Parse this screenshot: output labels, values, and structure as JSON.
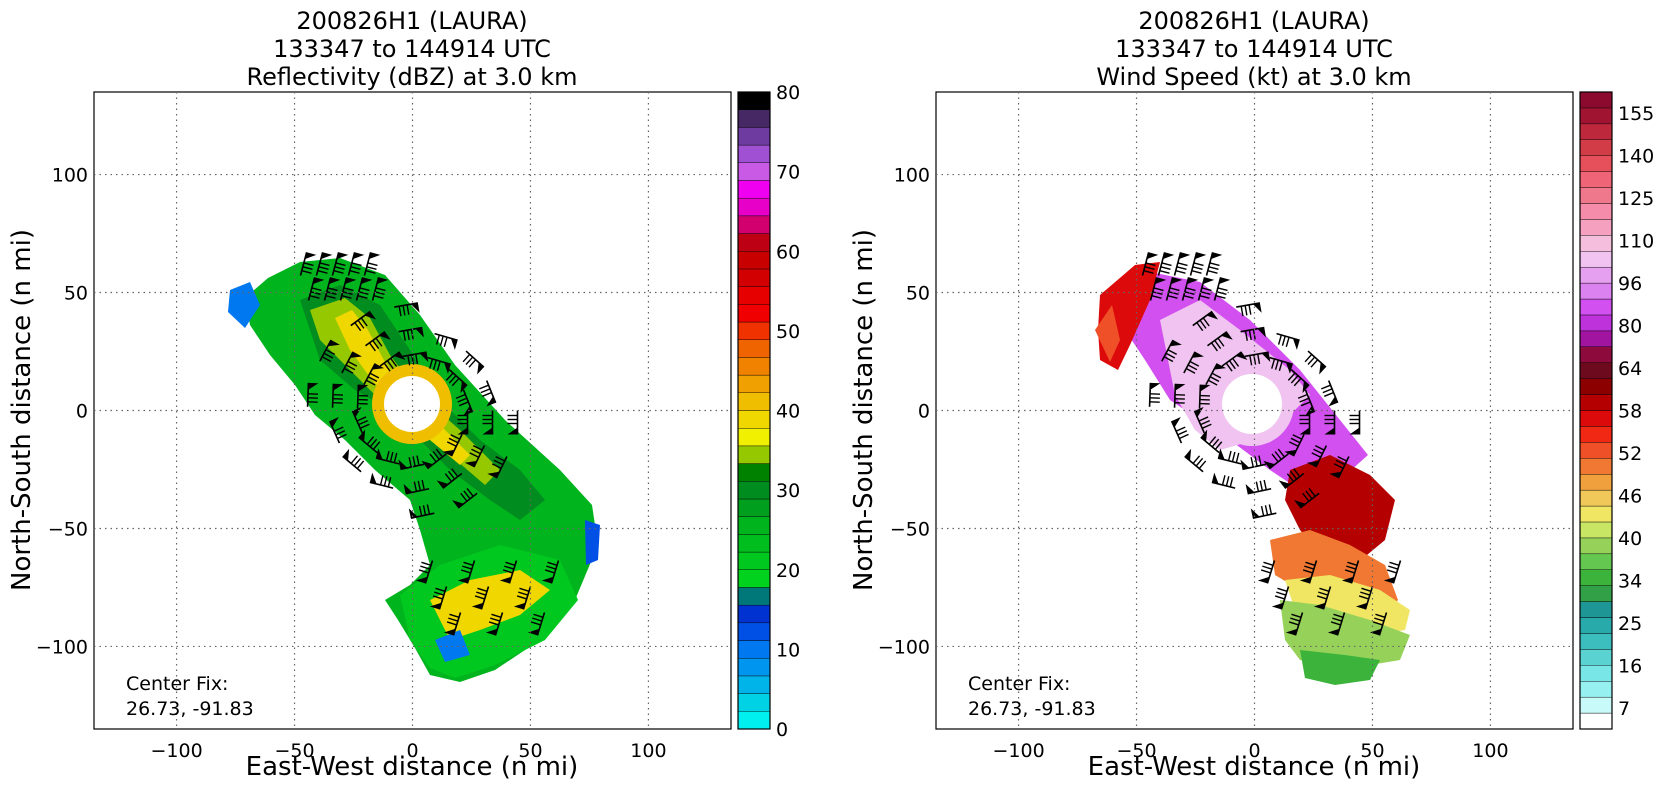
{
  "chart_data": [
    {
      "type": "heatmap",
      "title_lines": [
        "200826H1 (LAURA)",
        "133347 to 144914 UTC",
        "Reflectivity (dBZ) at 3.0 km"
      ],
      "xlabel": "East-West distance (n mi)",
      "ylabel": "North-South distance (n mi)",
      "xlim": [
        -135,
        135
      ],
      "ylim": [
        -135,
        135
      ],
      "xticks": [
        -100,
        -50,
        0,
        50,
        100
      ],
      "yticks": [
        -100,
        -50,
        0,
        50,
        100
      ],
      "grid": true,
      "annotation": [
        "Center Fix:",
        "26.73, -91.83"
      ],
      "colorbar": {
        "ticks": [
          0,
          10,
          20,
          30,
          40,
          50,
          60,
          70,
          80
        ],
        "min": 0,
        "max": 80,
        "colors": [
          "#00f0f0",
          "#00d2e6",
          "#00b4ea",
          "#0096f0",
          "#0078f0",
          "#0050e6",
          "#0032d2",
          "#00787a",
          "#00d21e",
          "#00c81e",
          "#00be1e",
          "#00b41e",
          "#00a01e",
          "#008c1e",
          "#008200",
          "#96c800",
          "#f0f000",
          "#f0d700",
          "#f0be00",
          "#f0a000",
          "#f08200",
          "#f06400",
          "#f03200",
          "#f00000",
          "#e60000",
          "#d20000",
          "#c80000",
          "#be0014",
          "#d2006e",
          "#e600c8",
          "#f000f0",
          "#c85ae6",
          "#a050d2",
          "#6e3ca0",
          "#462864",
          "#000000"
        ]
      }
    },
    {
      "type": "heatmap",
      "title_lines": [
        "200826H1 (LAURA)",
        "133347 to 144914 UTC",
        "Wind Speed (kt) at 3.0 km"
      ],
      "xlabel": "East-West distance (n mi)",
      "ylabel": "North-South distance (n mi)",
      "xlim": [
        -135,
        135
      ],
      "ylim": [
        -135,
        135
      ],
      "xticks": [
        -100,
        -50,
        0,
        50,
        100
      ],
      "yticks": [
        -100,
        -50,
        0,
        50,
        100
      ],
      "grid": true,
      "annotation": [
        "Center Fix:",
        "26.73, -91.83"
      ],
      "colorbar": {
        "ticks": [
          "155",
          "140",
          "125",
          "110",
          "96",
          "80",
          "64",
          "58",
          "52",
          "46",
          "40",
          "34",
          "25",
          "16",
          "7"
        ],
        "colors": [
          "#ffffff",
          "#c8fafa",
          "#96f0f0",
          "#78e6e6",
          "#5ad2d2",
          "#3cbebe",
          "#28aaaa",
          "#1e9696",
          "#32a046",
          "#3cb43c",
          "#64c850",
          "#96d25a",
          "#c8e664",
          "#f0e664",
          "#f0c85a",
          "#f0a03c",
          "#f07832",
          "#f05028",
          "#f02814",
          "#dc0a0a",
          "#b40000",
          "#8c0000",
          "#6e0a1e",
          "#8c0a3c",
          "#a014a0",
          "#be32dc",
          "#d250f0",
          "#dc82f0",
          "#e6a0f0",
          "#f0c3f0",
          "#f5bedc",
          "#f5a0be",
          "#f58caa",
          "#f0788c",
          "#f06478",
          "#e6505a",
          "#d23c46",
          "#be283c",
          "#a01432",
          "#8c0a2d"
        ]
      }
    }
  ]
}
